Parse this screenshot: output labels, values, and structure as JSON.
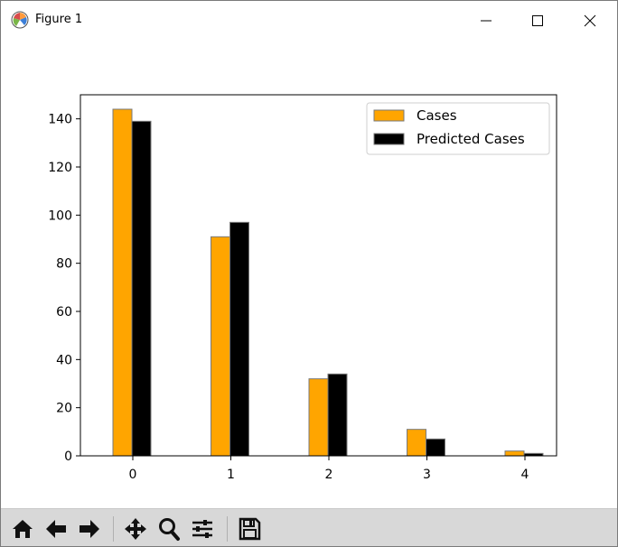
{
  "window": {
    "title": "Figure 1"
  },
  "titlebar_icons": [
    "matplotlib-logo-icon",
    "minimize-icon",
    "maximize-icon",
    "close-icon"
  ],
  "toolbar": {
    "buttons": [
      {
        "name": "home-button",
        "icon": "home-icon"
      },
      {
        "name": "back-button",
        "icon": "arrow-left-icon"
      },
      {
        "name": "forward-button",
        "icon": "arrow-right-icon"
      },
      {
        "name": "pan-button",
        "icon": "move-icon"
      },
      {
        "name": "zoom-button",
        "icon": "magnifier-icon"
      },
      {
        "name": "configure-subplots-button",
        "icon": "sliders-icon"
      },
      {
        "name": "save-button",
        "icon": "floppy-icon"
      }
    ]
  },
  "chart_data": {
    "type": "bar",
    "categories": [
      "0",
      "1",
      "2",
      "3",
      "4"
    ],
    "series": [
      {
        "name": "Cases",
        "values": [
          144,
          91,
          32,
          11,
          2
        ],
        "color": "#ffa500"
      },
      {
        "name": "Predicted Cases",
        "values": [
          139,
          97,
          34,
          7,
          1
        ],
        "color": "#000000"
      }
    ],
    "ylim": [
      0,
      150
    ],
    "yticks": [
      0,
      20,
      40,
      60,
      80,
      100,
      120,
      140
    ],
    "legend_position": "top-right",
    "grid": false,
    "title": "",
    "xlabel": "",
    "ylabel": ""
  }
}
